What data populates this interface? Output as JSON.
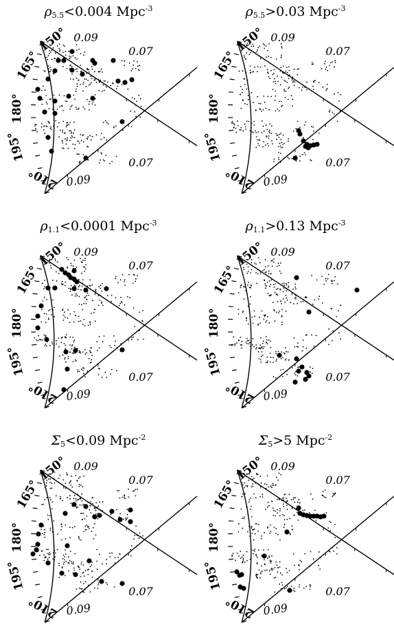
{
  "panels": [
    {
      "title": {
        "symbol": "ρ",
        "sub": "5.5",
        "op": "<",
        "value": "0.004",
        "unit": "Mpc",
        "exp": "-3"
      }
    },
    {
      "title": {
        "symbol": "ρ",
        "sub": "5.5",
        "op": ">",
        "value": "0.03",
        "unit": "Mpc",
        "exp": "-3"
      }
    },
    {
      "title": {
        "symbol": "ρ",
        "sub": "1.1",
        "op": "<",
        "value": "0.0001",
        "unit": "Mpc",
        "exp": "-3"
      }
    },
    {
      "title": {
        "symbol": "ρ",
        "sub": "1.1",
        "op": ">",
        "value": "0.13",
        "unit": "Mpc",
        "exp": "-3"
      }
    },
    {
      "title": {
        "symbol": "Σ",
        "sub": "5",
        "op": "<",
        "value": "0.09",
        "unit": "Mpc",
        "exp": "-2"
      }
    },
    {
      "title": {
        "symbol": "Σ",
        "sub": "5",
        "op": ">",
        "value": "5",
        "unit": "Mpc",
        "exp": "-2"
      }
    }
  ],
  "wedge_labels": {
    "ra": [
      "150°",
      "165°",
      "180°",
      "195°",
      "210°"
    ],
    "z_top_near": "0.09",
    "z_top_far": "0.07",
    "z_bottom_near": "0.09",
    "z_bottom_far": "0.07"
  },
  "colors": {
    "ink": "#000000",
    "background": "#ffffff"
  }
}
